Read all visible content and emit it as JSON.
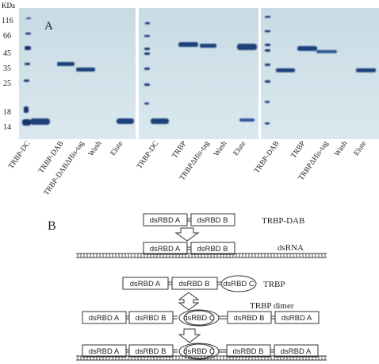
{
  "panel_a": {
    "label": "A",
    "unit": "KDa",
    "markers": [
      "116",
      "66",
      "45",
      "35",
      "25",
      "18",
      "14"
    ],
    "gels": [
      {
        "lanes": [
          "TRBP-DC",
          "TRBP-DAB",
          "TRBP-DABΔHis-tag",
          "Wash",
          "Elute"
        ]
      },
      {
        "lanes": [
          "TRBP-DC",
          "TRBP",
          "TRBPΔHis-tag",
          "Wash",
          "Elute"
        ]
      },
      {
        "lanes": [
          "TRBP-DAB",
          "TRBP",
          "TRBPΔHis-tag",
          "Wash",
          "Elute"
        ]
      }
    ]
  },
  "panel_b": {
    "label": "B",
    "dab_box_a": "dsRBD A",
    "dab_box_b": "dsRBD B",
    "dab_title": "TRBP-DAB",
    "dsrna_label": "dsRNA",
    "trbp_box_a": "dsRBD A",
    "trbp_box_b": "dsRBD B",
    "trbp_box_c": "dsRBD C",
    "trbp_title": "TRBP",
    "dimer_title": "TRBP dimer",
    "dimer_boxes": [
      "dsRBD A",
      "dsRBD B",
      "dsRBD C",
      "dsRBD B",
      "dsRBD A"
    ],
    "bound_boxes": [
      "dsRBD A",
      "dsRBD B",
      "dsRBD C",
      "dsRBD B",
      "dsRBD A"
    ]
  },
  "colors": {
    "gel_background": "#c9dde6",
    "band": "#1f3f7a",
    "marker_band": "#13306a"
  }
}
